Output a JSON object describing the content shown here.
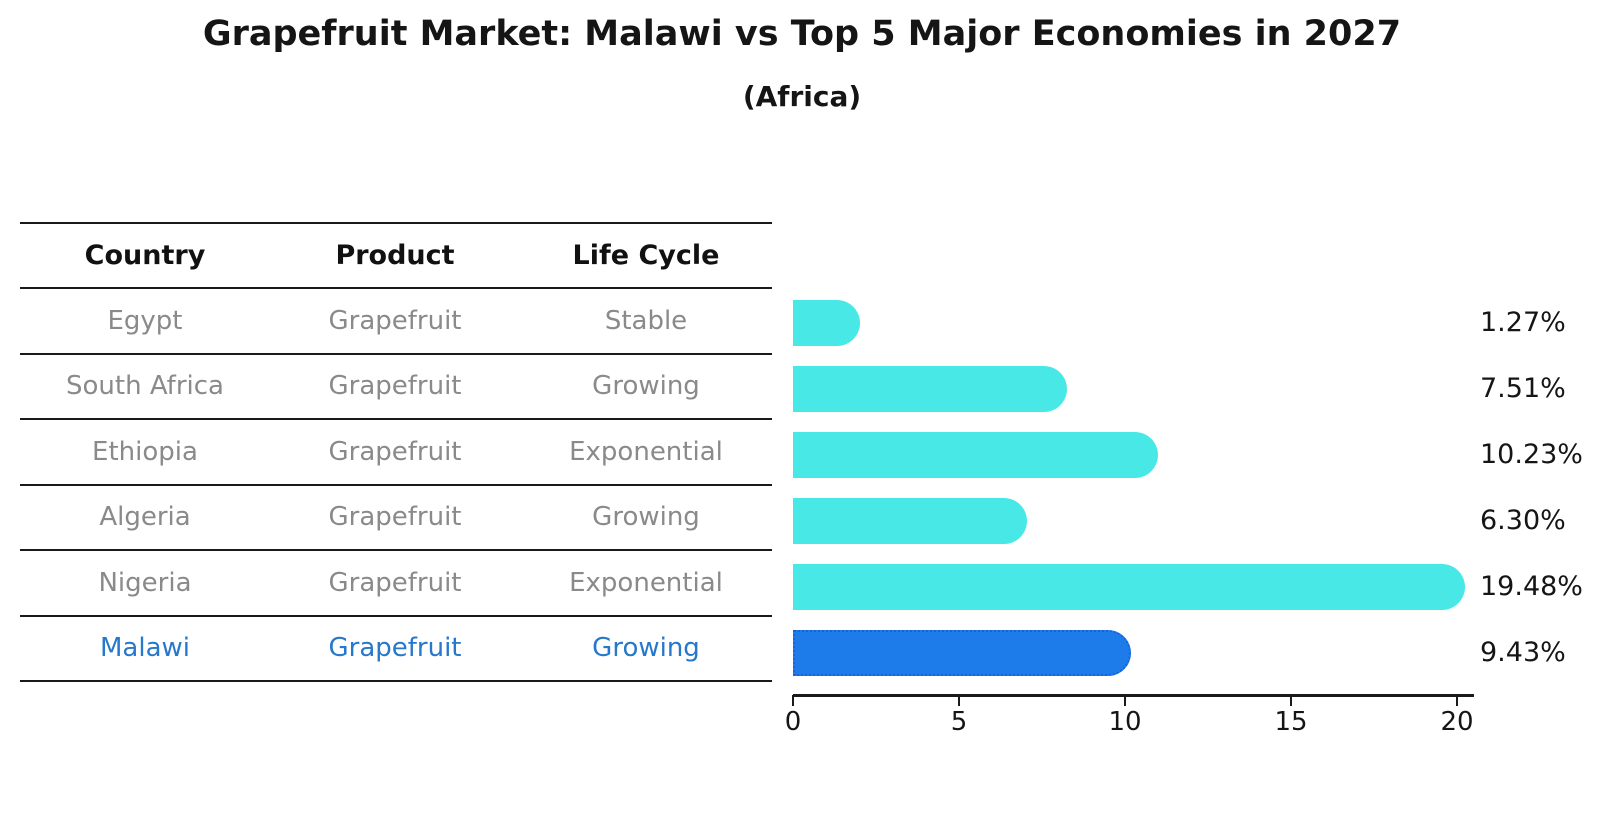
{
  "title": "Grapefruit Market: Malawi vs Top 5 Major Economies in 2027",
  "subtitle": "(Africa)",
  "table": {
    "headers": [
      "Country",
      "Product",
      "Life Cycle"
    ],
    "rows": [
      {
        "country": "Egypt",
        "product": "Grapefruit",
        "life_cycle": "Stable",
        "highlight": false
      },
      {
        "country": "South Africa",
        "product": "Grapefruit",
        "life_cycle": "Growing",
        "highlight": false
      },
      {
        "country": "Ethiopia",
        "product": "Grapefruit",
        "life_cycle": "Exponential",
        "highlight": false
      },
      {
        "country": "Algeria",
        "product": "Grapefruit",
        "life_cycle": "Growing",
        "highlight": false
      },
      {
        "country": "Nigeria",
        "product": "Grapefruit",
        "life_cycle": "Exponential",
        "highlight": false
      },
      {
        "country": "Malawi",
        "product": "Grapefruit",
        "life_cycle": "Growing",
        "highlight": true
      }
    ]
  },
  "chart_data": {
    "type": "bar",
    "orientation": "horizontal",
    "title": "Grapefruit Market: Malawi vs Top 5 Major Economies in 2027 (Africa)",
    "categories": [
      "Egypt",
      "South Africa",
      "Ethiopia",
      "Algeria",
      "Nigeria",
      "Malawi"
    ],
    "values": [
      1.27,
      7.51,
      10.23,
      6.3,
      19.48,
      9.43
    ],
    "value_labels": [
      "1.27%",
      "7.51%",
      "10.23%",
      "6.30%",
      "19.48%",
      "9.43%"
    ],
    "xlabel": "",
    "ylabel": "",
    "xlim": [
      0,
      20
    ],
    "xticks": [
      0,
      5,
      10,
      15,
      20
    ],
    "xtick_labels": [
      "0",
      "5",
      "10",
      "15",
      "20"
    ],
    "grid": false,
    "legend": "none",
    "highlight_index": 5
  },
  "colors": {
    "bar_fill": "#48e8e6",
    "highlight_fill": "#1e7cea",
    "highlight_border": "#1565d8",
    "text_primary": "#151515",
    "row_text": "#8a8a8a",
    "highlight_text": "#2678cc",
    "line": "#1a1a1a"
  }
}
